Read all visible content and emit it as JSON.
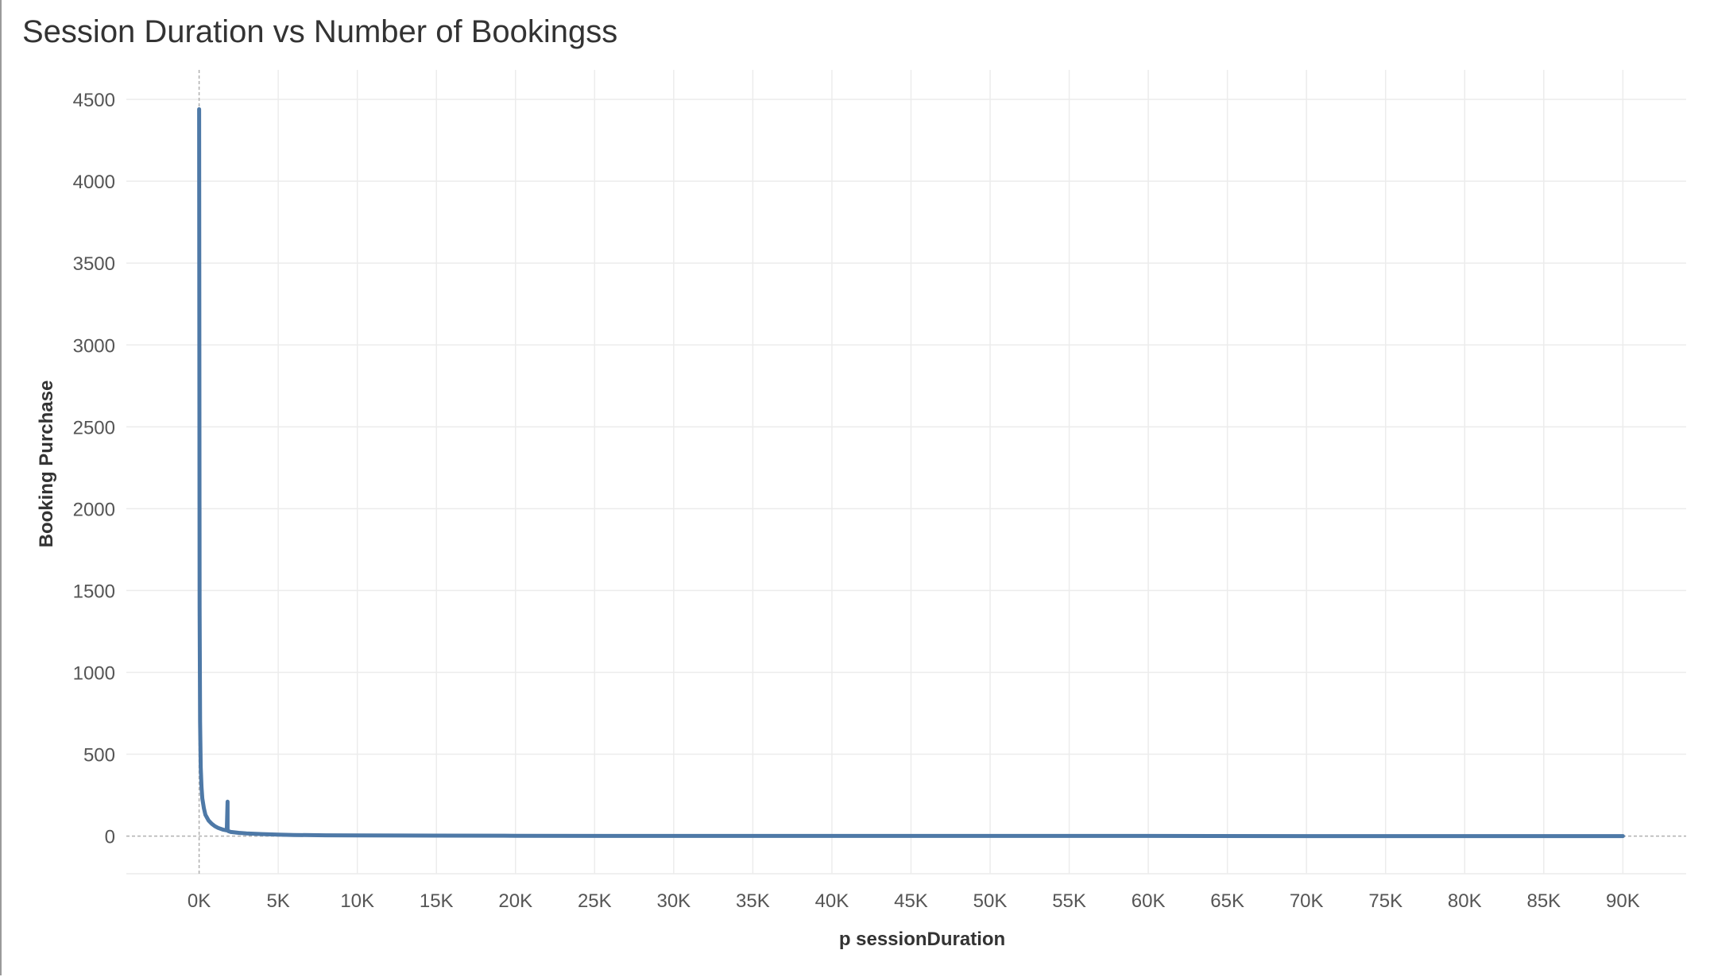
{
  "chart_data": {
    "type": "line",
    "title": "Session Duration vs Number of Bookingss",
    "xlabel": "p sessionDuration",
    "ylabel": "Booking Purchase",
    "xlim": [
      -4600,
      94000
    ],
    "ylim": [
      -230,
      4680
    ],
    "x_ticks": [
      0,
      5000,
      10000,
      15000,
      20000,
      25000,
      30000,
      35000,
      40000,
      45000,
      50000,
      55000,
      60000,
      65000,
      70000,
      75000,
      80000,
      85000,
      90000
    ],
    "x_tick_labels": [
      "0K",
      "5K",
      "10K",
      "15K",
      "20K",
      "25K",
      "30K",
      "35K",
      "40K",
      "45K",
      "50K",
      "55K",
      "60K",
      "65K",
      "70K",
      "75K",
      "80K",
      "85K",
      "90K"
    ],
    "y_ticks": [
      0,
      500,
      1000,
      1500,
      2000,
      2500,
      3000,
      3500,
      4000,
      4500
    ],
    "y_tick_labels": [
      "0",
      "500",
      "1000",
      "1500",
      "2000",
      "2500",
      "3000",
      "3500",
      "4000",
      "4500"
    ],
    "grid": true,
    "legend": "none",
    "color": "#4e79a7",
    "series": [
      {
        "x": [
          0,
          0,
          30,
          60,
          100,
          150,
          200,
          300,
          400,
          600,
          800,
          1000,
          1200,
          1500,
          1750,
          1800,
          1800,
          1850,
          2000,
          2500,
          3000,
          4000,
          5000,
          6000,
          8000,
          10000,
          15000,
          20000,
          30000,
          40000,
          50000,
          60000,
          70000,
          80000,
          90000
        ],
        "y": [
          4440,
          4440,
          1400,
          700,
          420,
          300,
          230,
          170,
          130,
          95,
          75,
          60,
          50,
          40,
          35,
          210,
          35,
          30,
          25,
          20,
          16,
          12,
          9,
          7,
          5,
          4,
          3,
          2,
          1,
          1,
          1,
          1,
          0,
          0,
          0
        ]
      }
    ]
  }
}
